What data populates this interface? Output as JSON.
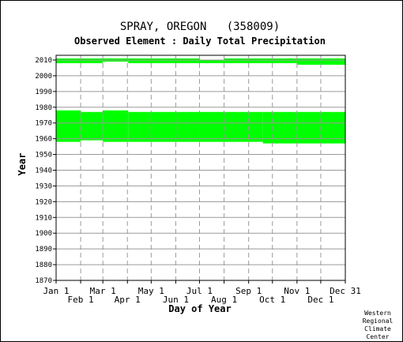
{
  "chart_data": {
    "type": "bar",
    "title": "SPRAY, OREGON   (358009)",
    "subtitle": "Observed Element : Daily Total Precipitation",
    "xlabel": "Day of Year",
    "ylabel": "Year",
    "ylim": [
      1870,
      2013
    ],
    "xlim": [
      1,
      366
    ],
    "grid": true,
    "y_ticks": [
      1870,
      1880,
      1890,
      1900,
      1910,
      1920,
      1930,
      1940,
      1950,
      1960,
      1970,
      1980,
      1990,
      2000,
      2010
    ],
    "x_ticks": [
      {
        "label": "Jan 1",
        "day": 1,
        "row": 1
      },
      {
        "label": "Feb 1",
        "day": 32,
        "row": 2
      },
      {
        "label": "Mar 1",
        "day": 60,
        "row": 1
      },
      {
        "label": "Apr 1",
        "day": 91,
        "row": 2
      },
      {
        "label": "May 1",
        "day": 121,
        "row": 1
      },
      {
        "label": "Jun 1",
        "day": 152,
        "row": 2
      },
      {
        "label": "Jul 1",
        "day": 182,
        "row": 1
      },
      {
        "label": "Aug 1",
        "day": 213,
        "row": 2
      },
      {
        "label": "Sep 1",
        "day": 244,
        "row": 1
      },
      {
        "label": "Oct 1",
        "day": 274,
        "row": 2
      },
      {
        "label": "Nov 1",
        "day": 305,
        "row": 1
      },
      {
        "label": "Dec 1",
        "day": 335,
        "row": 2
      },
      {
        "label": "Dec 31",
        "day": 366,
        "row": 1
      }
    ],
    "series_color": "#00ff00",
    "periods": [
      {
        "start_day": 1,
        "end_day": 32,
        "start_year": 1958,
        "end_year": 1978
      },
      {
        "start_day": 32,
        "end_day": 60,
        "start_year": 1959,
        "end_year": 1977
      },
      {
        "start_day": 60,
        "end_day": 92,
        "start_year": 1958,
        "end_year": 1978
      },
      {
        "start_day": 92,
        "end_day": 262,
        "start_year": 1958,
        "end_year": 1977
      },
      {
        "start_day": 262,
        "end_day": 366,
        "start_year": 1957,
        "end_year": 1977
      },
      {
        "start_day": 1,
        "end_day": 60,
        "start_year": 2008,
        "end_year": 2011
      },
      {
        "start_day": 60,
        "end_day": 92,
        "start_year": 2009,
        "end_year": 2011
      },
      {
        "start_day": 92,
        "end_day": 182,
        "start_year": 2008,
        "end_year": 2011
      },
      {
        "start_day": 182,
        "end_day": 213,
        "start_year": 2008,
        "end_year": 2010
      },
      {
        "start_day": 213,
        "end_day": 305,
        "start_year": 2008,
        "end_year": 2011
      },
      {
        "start_day": 305,
        "end_day": 366,
        "start_year": 2007,
        "end_year": 2011
      }
    ]
  },
  "credit": [
    "Western",
    "Regional",
    "Climate",
    "Center"
  ]
}
